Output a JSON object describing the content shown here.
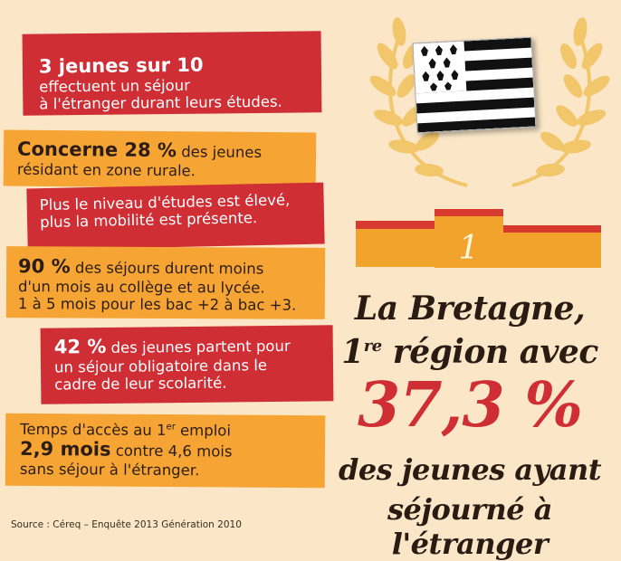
{
  "cards": {
    "c1": {
      "bold": "3 jeunes sur 10",
      "line2": "effectuent un séjour",
      "line3": "à l'étranger durant leurs études."
    },
    "c2": {
      "bold": "Concerne 28 %",
      "rest1": " des jeunes",
      "line2": "résidant en zone rurale."
    },
    "c3": {
      "line1": "Plus le niveau d'études est élevé,",
      "line2": "plus la mobilité est présente."
    },
    "c4": {
      "bold": "90 %",
      "rest1": " des séjours durent moins",
      "line2": "d'un mois au collège et au lycée.",
      "line3": "1 à 5 mois pour les bac +2 à bac +3."
    },
    "c5": {
      "bold": "42 %",
      "rest1": " des jeunes partent pour",
      "line2": "un séjour obligatoire dans le",
      "line3": "cadre de leur scolarité."
    },
    "c6": {
      "line1a": "Temps d'accès au 1",
      "line1sup": "er",
      "line1b": " emploi",
      "bold": "2,9 mois",
      "rest2": " contre 4,6 mois",
      "line3": "sans séjour à l'étranger."
    }
  },
  "source": "Source : Céreq – Enquête 2013 Génération 2010",
  "podium": {
    "rank": "1"
  },
  "headline": {
    "line1": "La Bretagne,",
    "line2a": "1",
    "line2sup": "re",
    "line2b": " région avec",
    "percent": "37,3 %",
    "line3": "des jeunes ayant",
    "line4": "séjourné à l'étranger"
  },
  "colors": {
    "background": "#fbe7c8",
    "red": "#cf2e35",
    "orange": "#f6a535",
    "laurel": "#f2c66a"
  },
  "icons": {
    "laurel": "laurel-wreath-icon",
    "flag": "breton-flag-icon"
  }
}
